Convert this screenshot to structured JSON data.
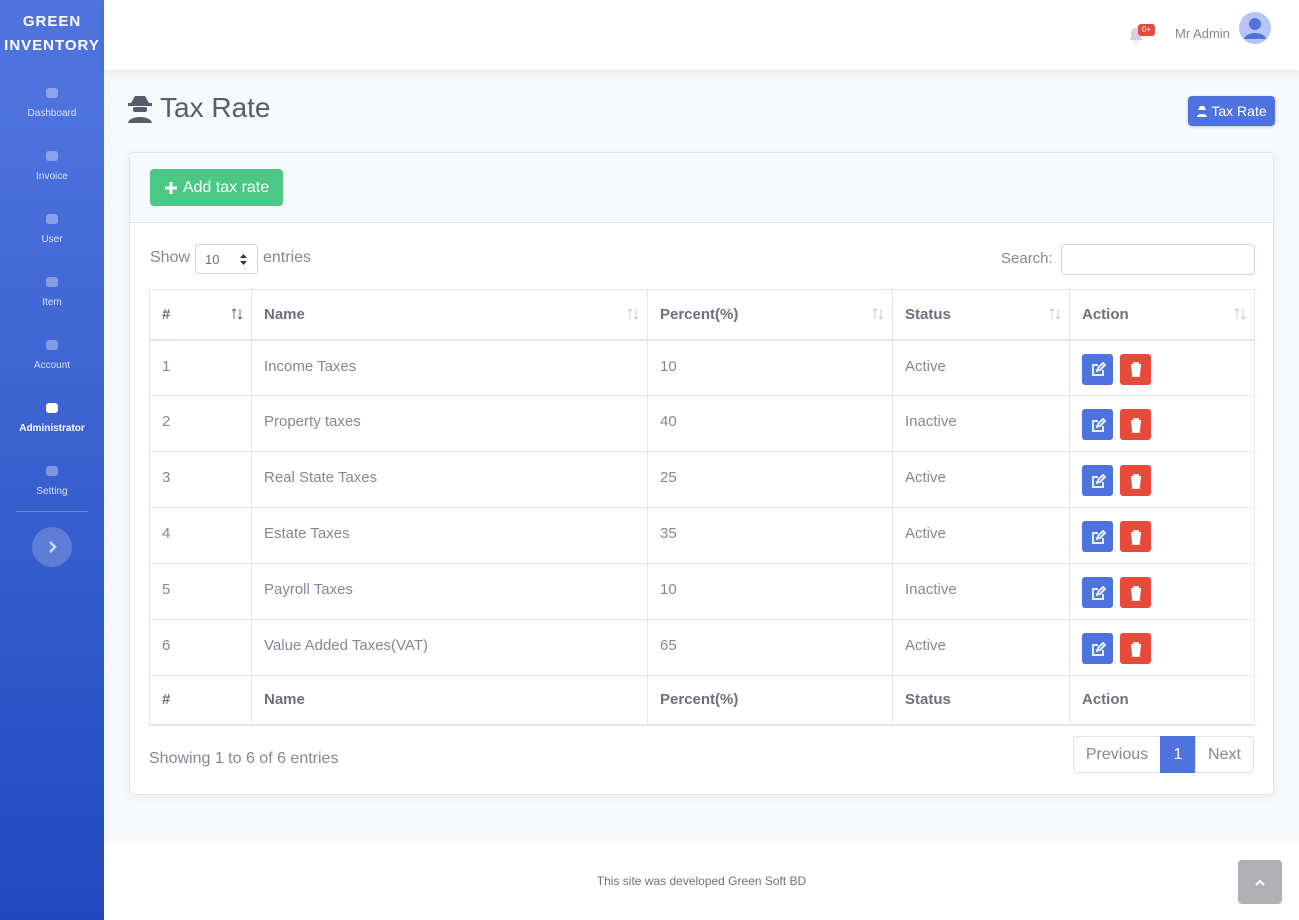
{
  "sidebar": {
    "brand": [
      "GREEN",
      "INVENTORY"
    ],
    "nav": [
      {
        "label": "Dashboard"
      },
      {
        "label": "Invoice"
      },
      {
        "label": "User"
      },
      {
        "label": "Item"
      },
      {
        "label": "Account"
      },
      {
        "label": "Administrator",
        "active": true
      },
      {
        "label": "Setting"
      }
    ]
  },
  "topbar": {
    "badge": "0+",
    "user": "Mr Admin"
  },
  "page": {
    "title": "Tax Rate",
    "button": "Tax Rate"
  },
  "card": {
    "add_button": "Add tax rate",
    "show": "Show",
    "length": "10",
    "entries": "entries",
    "search_label": "Search:"
  },
  "table": {
    "columns": [
      "#",
      "Name",
      "Percent(%)",
      "Status",
      "Action"
    ],
    "rows": [
      [
        1,
        "Income Taxes",
        10,
        "Active"
      ],
      [
        2,
        "Property taxes",
        40,
        "Inactive"
      ],
      [
        3,
        "Real State Taxes",
        25,
        "Active"
      ],
      [
        4,
        "Estate Taxes",
        35,
        "Active"
      ],
      [
        5,
        "Payroll Taxes",
        10,
        "Inactive"
      ],
      [
        6,
        "Value Added Taxes(VAT)",
        65,
        "Active"
      ]
    ],
    "footer_columns": [
      "#",
      "Name",
      "Percent(%)",
      "Status",
      "Action"
    ]
  },
  "info": "Showing 1 to 6 of 6 entries",
  "pagination": [
    "Previous",
    "1",
    "Next"
  ],
  "footer": "This site was developed Green Soft BD"
}
